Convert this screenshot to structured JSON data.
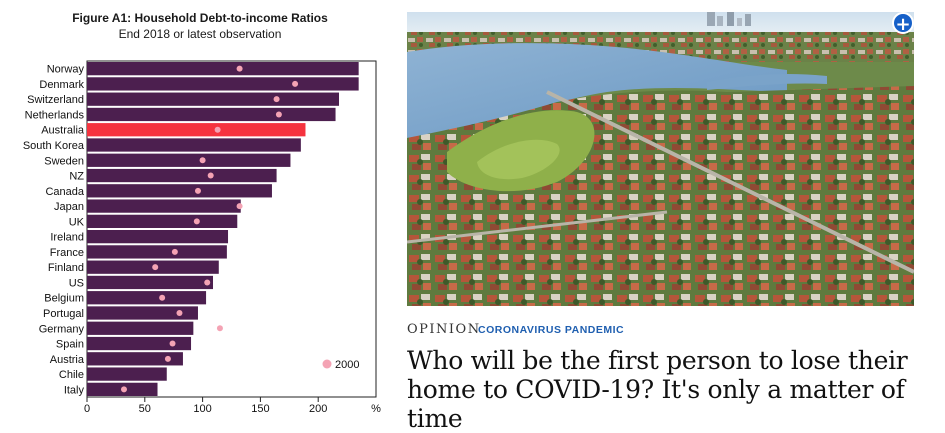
{
  "chart_data": {
    "type": "bar",
    "title": "Figure A1: Household Debt-to-income Ratios",
    "subtitle": "End 2018 or latest observation",
    "orientation": "horizontal",
    "categories": [
      "Norway",
      "Denmark",
      "Switzerland",
      "Netherlands",
      "Australia",
      "South Korea",
      "Sweden",
      "NZ",
      "Canada",
      "Japan",
      "UK",
      "Ireland",
      "France",
      "Finland",
      "US",
      "Belgium",
      "Portugal",
      "Germany",
      "Spain",
      "Austria",
      "Chile",
      "Italy"
    ],
    "series": [
      {
        "name": "",
        "values": [
          235,
          235,
          218,
          215,
          189,
          185,
          176,
          164,
          160,
          133,
          130,
          122,
          121,
          114,
          109,
          103,
          96,
          92,
          90,
          83,
          69,
          61
        ]
      },
      {
        "name": "2000",
        "values": [
          132,
          180,
          164,
          166,
          113,
          0,
          100,
          107,
          96,
          132,
          95,
          0,
          76,
          59,
          104,
          65,
          80,
          115,
          74,
          70,
          0,
          32
        ]
      }
    ],
    "highlight_category": "Australia",
    "colors": {
      "bar": "#4c1f4f",
      "highlight": "#f5333f",
      "marker": "#f4a3b4"
    },
    "xlim": [
      0,
      250
    ],
    "xticks": [
      0,
      50,
      100,
      150,
      200
    ],
    "x_unit_label": "%",
    "legend": {
      "placement": "bottom-right",
      "label": "2000"
    }
  },
  "article": {
    "photo": {
      "expand_icon": "plus-icon",
      "expand_label": "+"
    },
    "kicker": "OPINION",
    "section": "CORONAVIRUS PANDEMIC",
    "headline_line1": "Who will be the first person to lose their",
    "headline_line2": "home to COVID-19? It's only a matter of time"
  }
}
